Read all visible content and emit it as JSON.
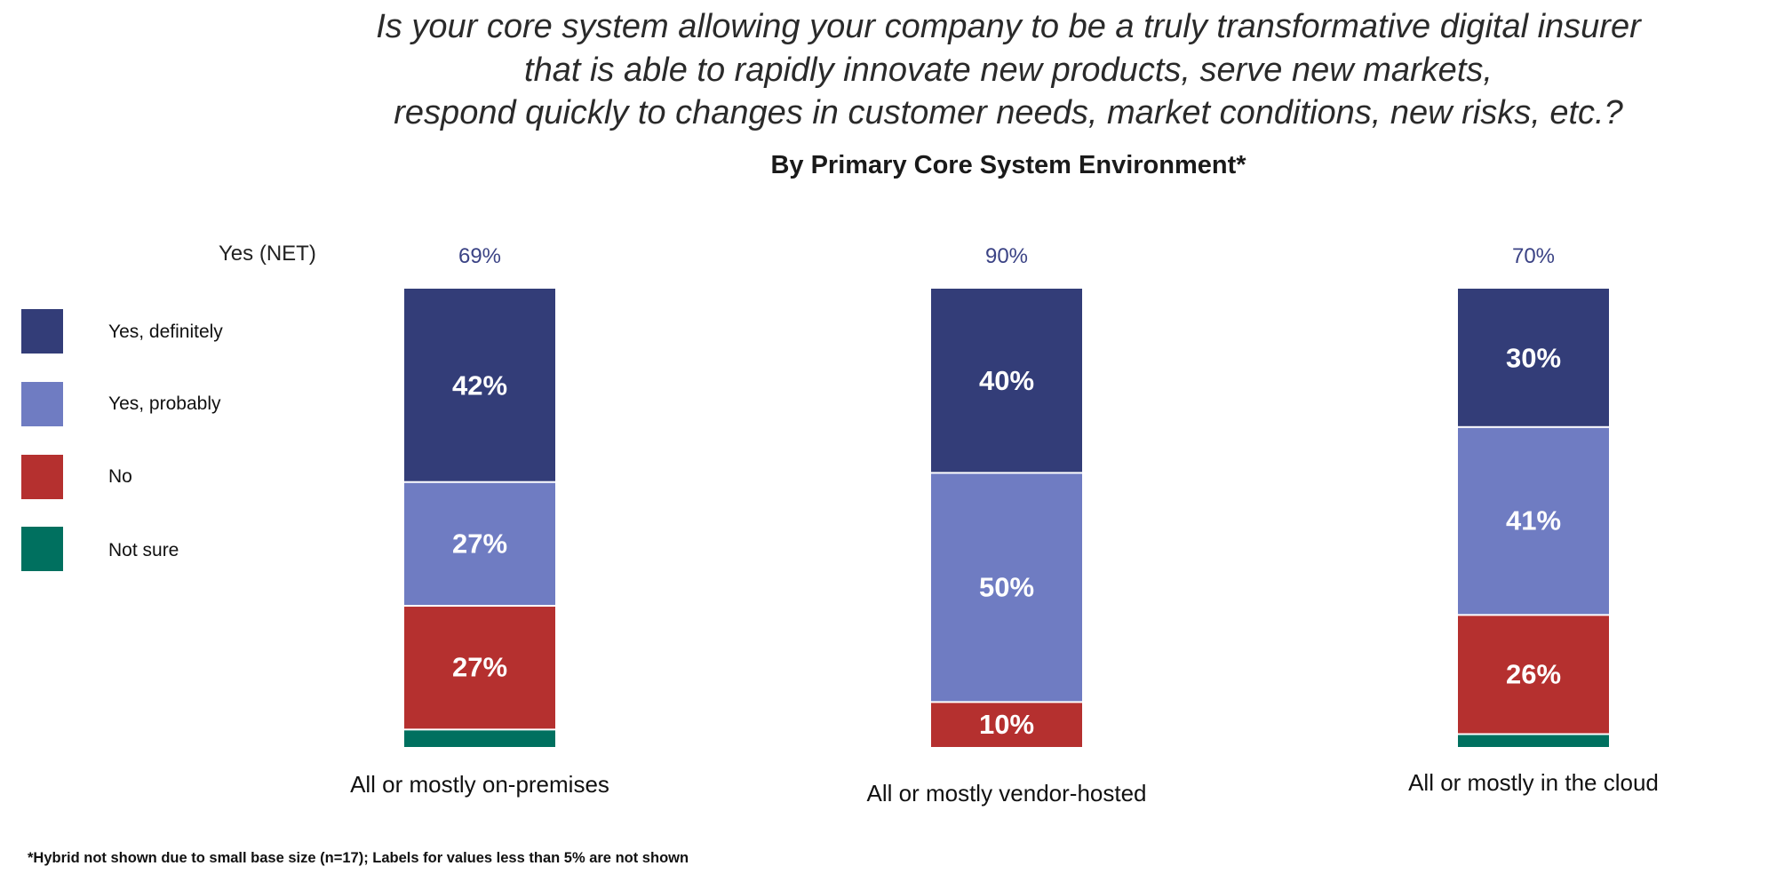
{
  "title_lines": [
    "Is your core system allowing your company to be a truly transformative digital insurer",
    "that is able to rapidly innovate new products, serve new markets,",
    "respond quickly to changes in customer needs, market conditions, new risks, etc.?"
  ],
  "subtitle": "By Primary Core System Environment*",
  "net_row_label": "Yes (NET)",
  "footnote": "*Hybrid not shown due to small base size (n=17); Labels for values less than 5% are not shown",
  "chart_data": {
    "type": "bar",
    "stacked": true,
    "title": "By Primary Core System Environment*",
    "categories": [
      "All or mostly on-premises",
      "All or mostly vendor-hosted",
      "All or mostly in the cloud"
    ],
    "net_values": [
      "69%",
      "90%",
      "70%"
    ],
    "series": [
      {
        "name": "Yes, definitely",
        "color": "#333d78",
        "values": [
          42,
          40,
          30
        ]
      },
      {
        "name": "Yes, probably",
        "color": "#6f7cc2",
        "values": [
          27,
          50,
          41
        ]
      },
      {
        "name": "No",
        "color": "#b5302f",
        "values": [
          27,
          10,
          26
        ]
      },
      {
        "name": "Not sure",
        "color": "#00705f",
        "values": [
          4,
          0,
          3
        ]
      }
    ],
    "label_threshold": 5,
    "ylim": [
      0,
      100
    ],
    "legend_position": "left"
  }
}
